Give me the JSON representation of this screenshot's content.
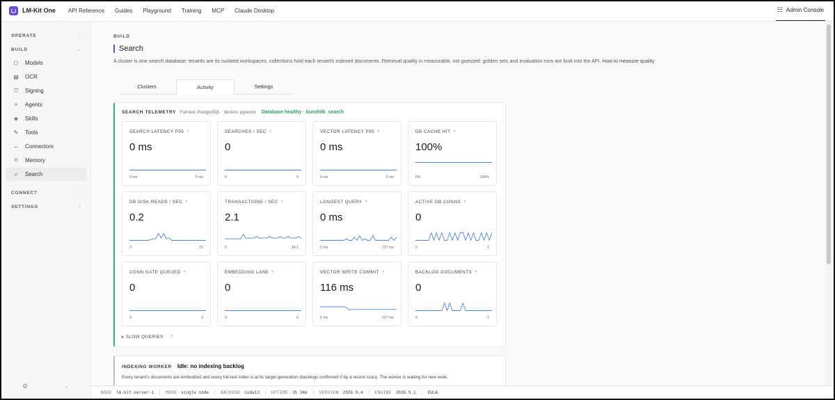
{
  "app": {
    "name": "LM-Kit One"
  },
  "topnav": [
    "API Reference",
    "Guides",
    "Playground",
    "Training",
    "MCP",
    "Claude Desktop"
  ],
  "admin": {
    "label": "Admin Console",
    "icon": "sliders-icon"
  },
  "sidebar": {
    "operate": "OPERATE",
    "build": "BUILD",
    "connect": "CONNECT",
    "settings": "SETTINGS",
    "items": [
      {
        "label": "Models",
        "icon": "cube-icon"
      },
      {
        "label": "OCR",
        "icon": "document-scan-icon"
      },
      {
        "label": "Signing",
        "icon": "shield-icon"
      },
      {
        "label": "Agents",
        "icon": "sparkle-icon"
      },
      {
        "label": "Skills",
        "icon": "layers-icon"
      },
      {
        "label": "Tools",
        "icon": "wrench-icon"
      },
      {
        "label": "Connectors",
        "icon": "connector-icon"
      },
      {
        "label": "Memory",
        "icon": "bookmark-icon"
      },
      {
        "label": "Search",
        "icon": "search-icon"
      }
    ],
    "active": "Search"
  },
  "page": {
    "crumb": "BUILD",
    "title": "Search",
    "description": "A cluster is one search database; tenants are its isolated workspaces; collections hold each tenant's indexed documents. Retrieval quality is measurable, not guessed: golden sets and evaluation runs are built into the API.",
    "link": "How to measure quality"
  },
  "tabs": [
    {
      "label": "Clusters",
      "active": false
    },
    {
      "label": "Activity",
      "active": true
    },
    {
      "label": "Settings",
      "active": false
    }
  ],
  "telemetry": {
    "title": "SEARCH TELEMETRY",
    "subtitle": "Full-text: PostgreSQL · Vectors: pgvector",
    "status": "Database healthy · burofolk_search",
    "status_color": "#2a9d62",
    "help": "?",
    "slow_queries": "SLOW QUERIES",
    "metrics": [
      {
        "title": "SEARCH LATENCY P95",
        "value": "0 ms",
        "min": "0 ms",
        "max": "0 ms",
        "spark": [
          0,
          0,
          0,
          0,
          0,
          0,
          0,
          0,
          0,
          0
        ]
      },
      {
        "title": "SEARCHES / SEC",
        "value": "0",
        "min": "0",
        "max": "0",
        "spark": [
          0,
          0,
          0,
          0,
          0,
          0,
          0,
          0,
          0,
          0
        ]
      },
      {
        "title": "VECTOR LATENCY P95",
        "value": "0 ms",
        "min": "0 ms",
        "max": "0 ms",
        "spark": [
          0,
          0,
          0,
          0,
          0,
          0,
          0,
          0,
          0,
          0
        ]
      },
      {
        "title": "DB CACHE HIT",
        "value": "100%",
        "min": "0%",
        "max": "100%",
        "spark": [
          1,
          1,
          1,
          1,
          1,
          1,
          1,
          1,
          1,
          1
        ]
      },
      {
        "title": "DB DISK READS / SEC",
        "value": "0.2",
        "min": "0",
        "max": "15",
        "spark": [
          0,
          0,
          0,
          0,
          0,
          0,
          0,
          0,
          0.1,
          0.2,
          0.2,
          0.9,
          0.3,
          0.9,
          0.2,
          0.3,
          0,
          0,
          0,
          0,
          0,
          0,
          0,
          0,
          0,
          0,
          0,
          0,
          0,
          0
        ]
      },
      {
        "title": "TRANSACTIONS / SEC",
        "value": "2.1",
        "min": "0",
        "max": "18.1",
        "spark": [
          0.2,
          0.2,
          0.2,
          0.2,
          0.2,
          0.2,
          0.2,
          0.8,
          0.3,
          0.3,
          0.3,
          0.3,
          0.5,
          0.3,
          0.3,
          0.3,
          0.3,
          0.5,
          0.3,
          0.3,
          0.3,
          0.5,
          0.3,
          0.3,
          0.5,
          0.3,
          0.3,
          0.3,
          0.5,
          0.2
        ]
      },
      {
        "title": "LONGEST QUERY",
        "value": "0 ms",
        "min": "0 ms",
        "max": "727 ms",
        "spark": [
          0,
          0,
          0,
          0,
          0,
          0,
          0,
          0,
          0,
          0,
          0.2,
          0,
          0,
          0.4,
          0,
          0.6,
          0,
          0.2,
          0,
          0,
          0.6,
          0,
          0,
          0,
          0,
          0,
          0,
          0.4,
          0,
          0.4
        ]
      },
      {
        "title": "ACTIVE DB CONNS",
        "value": "0",
        "min": "0",
        "max": "1",
        "spark": [
          0,
          0,
          0,
          0,
          0,
          0,
          1,
          0,
          1,
          0,
          1,
          0,
          0,
          1,
          0,
          1,
          0,
          1,
          1,
          0,
          1,
          0,
          1,
          0,
          0,
          1,
          0,
          1,
          0,
          1
        ]
      },
      {
        "title": "CONN GATE QUEUED",
        "value": "0",
        "min": "0",
        "max": "0",
        "spark": [
          0,
          0,
          0,
          0,
          0,
          0,
          0,
          0,
          0,
          0
        ]
      },
      {
        "title": "EMBEDDING LANE",
        "value": "0",
        "min": "0",
        "max": "0",
        "spark": [
          0,
          0,
          0,
          0,
          0,
          0,
          0,
          0,
          0,
          0
        ]
      },
      {
        "title": "VECTOR WRITE COMMIT",
        "value": "116 ms",
        "min": "0 ms",
        "max": "227 ms",
        "spark": [
          0.5,
          0.5,
          0.5,
          0.5,
          0.5,
          0.5,
          0.5,
          0.5,
          0.5,
          0.5,
          0.4,
          0.1,
          0.15,
          0.15,
          0.15,
          0.15,
          0.15,
          0.15,
          0.15,
          0.15,
          0.15,
          0.15,
          0.15,
          0.15,
          0.15,
          0.15,
          0.15,
          0.15,
          0.15,
          0.15
        ]
      },
      {
        "title": "BACKLOG DOCUMENTS",
        "value": "0",
        "min": "0",
        "max": "1",
        "spark": [
          0,
          0,
          0,
          0,
          0,
          0,
          0,
          0,
          0,
          0,
          0,
          1,
          0,
          1,
          0,
          0,
          0,
          0,
          1,
          0,
          0,
          0,
          0,
          0,
          0,
          0,
          0,
          0,
          0,
          0
        ]
      }
    ]
  },
  "worker": {
    "title": "INDEXING WORKER",
    "status": "Idle: no indexing backlog",
    "description": "Every tenant's documents are embedded and every full-text index is at its target generation (backlogs confirmed 0 by a recent scan). The worker is waiting for new work."
  },
  "statusbar": {
    "node_key": "NODE",
    "node": "lm-kit-server-1",
    "mode_key": "MODE",
    "mode": "single node",
    "backend_key": "BACKEND",
    "backend": "Cuda13",
    "uptime_key": "UPTIME",
    "uptime": "3h 34m",
    "version_key": "VERSION",
    "version": "2026.9.4",
    "engine_key": "ENGINE",
    "engine": "2026.9.1",
    "eula": "EULA"
  },
  "colors": {
    "accent": "#6d4bd8",
    "spark": "#4a86d8",
    "healthy": "#2eb872"
  }
}
